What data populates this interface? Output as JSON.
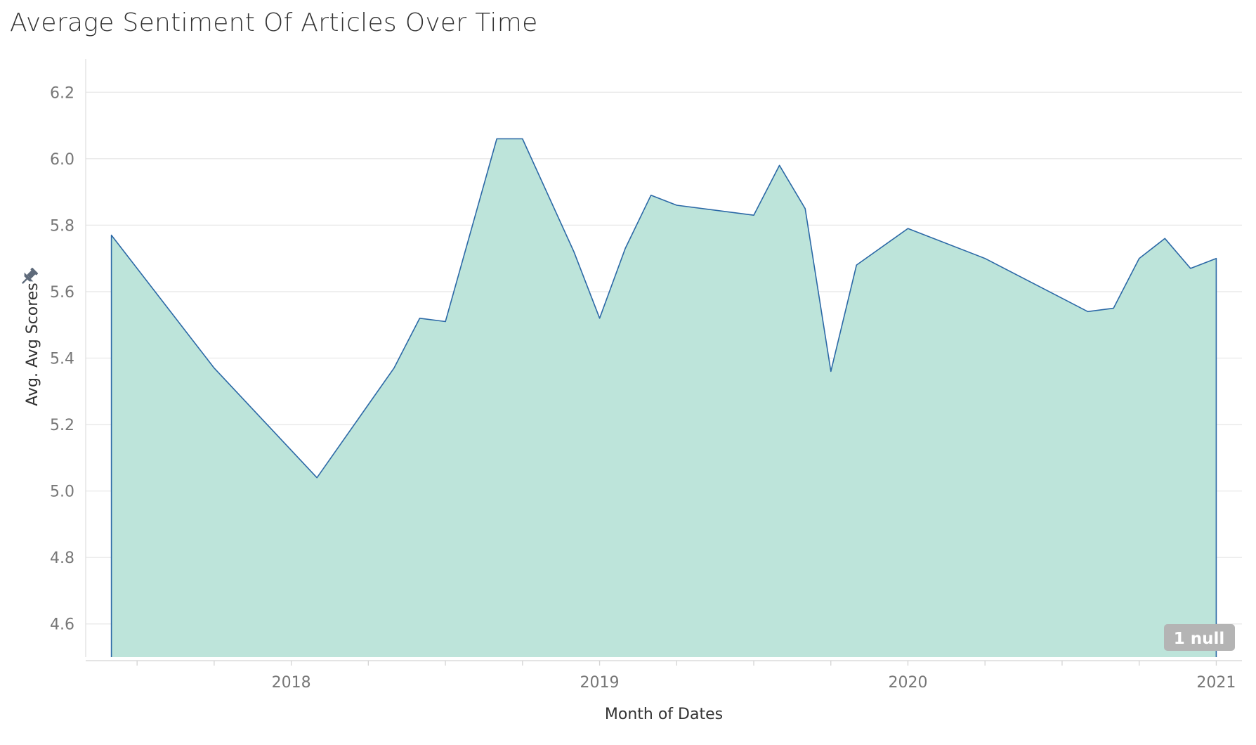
{
  "chart_data": {
    "type": "area",
    "title": "Average Sentiment Of Articles Over Time",
    "xlabel": "Month of Dates",
    "ylabel": "Avg. Avg Scores",
    "x_ticks": [
      {
        "date": "2018-01",
        "label": "2018"
      },
      {
        "date": "2019-01",
        "label": "2019"
      },
      {
        "date": "2020-01",
        "label": "2020"
      },
      {
        "date": "2021-01",
        "label": "2021"
      }
    ],
    "y_ticks": [
      "4.6",
      "4.8",
      "5.0",
      "5.2",
      "5.4",
      "5.6",
      "5.8",
      "6.0",
      "6.2"
    ],
    "ylim": [
      4.5,
      6.3
    ],
    "xlim": [
      "2017-05",
      "2021-02"
    ],
    "grid": true,
    "legend": "none",
    "series": [
      {
        "points": [
          {
            "x": "2017-06",
            "y": 5.77
          },
          {
            "x": "2017-10",
            "y": 5.37
          },
          {
            "x": "2018-02",
            "y": 5.04
          },
          {
            "x": "2018-05",
            "y": 5.37
          },
          {
            "x": "2018-06",
            "y": 5.52
          },
          {
            "x": "2018-07",
            "y": 5.51
          },
          {
            "x": "2018-09",
            "y": 6.06
          },
          {
            "x": "2018-10",
            "y": 6.06
          },
          {
            "x": "2018-12",
            "y": 5.72
          },
          {
            "x": "2019-01",
            "y": 5.52
          },
          {
            "x": "2019-02",
            "y": 5.73
          },
          {
            "x": "2019-03",
            "y": 5.89
          },
          {
            "x": "2019-04",
            "y": 5.86
          },
          {
            "x": "2019-07",
            "y": 5.83
          },
          {
            "x": "2019-08",
            "y": 5.98
          },
          {
            "x": "2019-09",
            "y": 5.85
          },
          {
            "x": "2019-10",
            "y": 5.36
          },
          {
            "x": "2019-11",
            "y": 5.68
          },
          {
            "x": "2020-01",
            "y": 5.79
          },
          {
            "x": "2020-04",
            "y": 5.7
          },
          {
            "x": "2020-08",
            "y": 5.54
          },
          {
            "x": "2020-09",
            "y": 5.55
          },
          {
            "x": "2020-10",
            "y": 5.7
          },
          {
            "x": "2020-11",
            "y": 5.76
          },
          {
            "x": "2020-12",
            "y": 5.67
          },
          {
            "x": "2021-01",
            "y": 5.7
          }
        ]
      }
    ],
    "null_indicator": "1 null"
  },
  "colors": {
    "area_fill": "#bde4da",
    "line": "#2b68a6",
    "gridline": "#e8e8e8",
    "axis": "#d4d4d4",
    "null_badge": "#b4b4b4",
    "pin_icon": "#5e6a7a"
  },
  "icons": {
    "axis_pin": "pin-icon"
  }
}
